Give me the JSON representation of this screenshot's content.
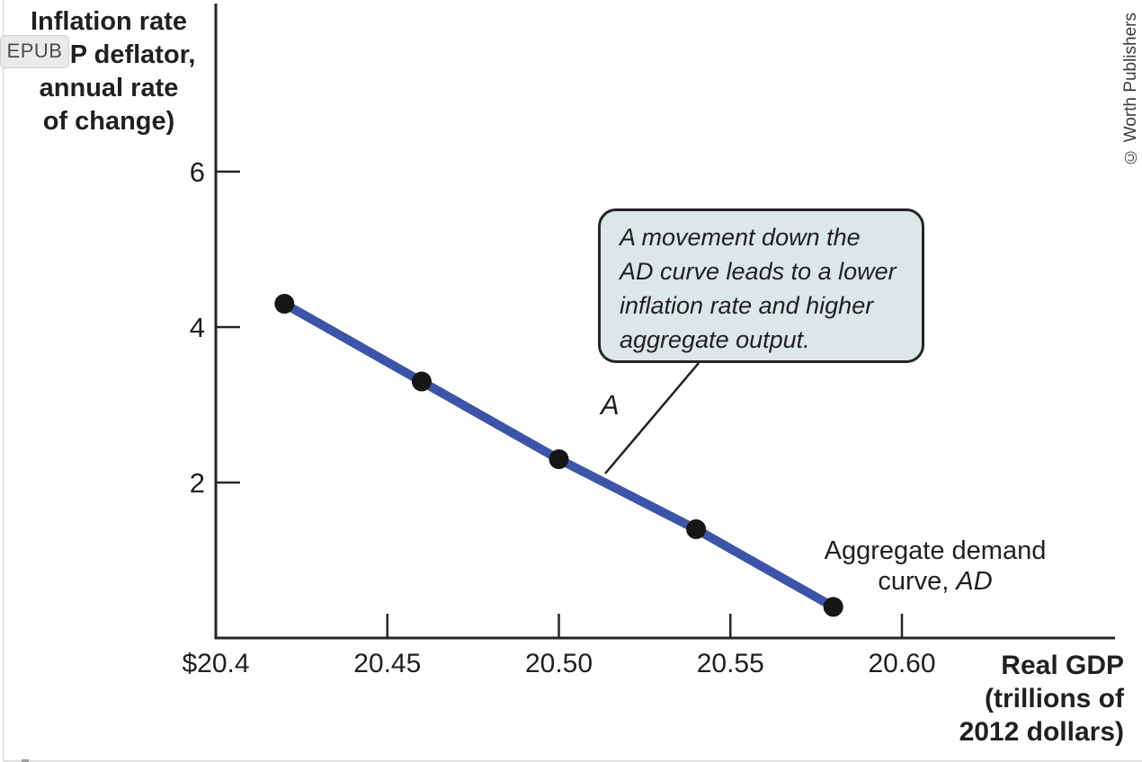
{
  "page": {
    "epub_badge_label": "EPUB",
    "credit": "© Worth Publishers"
  },
  "chart_data": {
    "type": "line",
    "grid": false,
    "legend": "none",
    "ylabel_lines": [
      "Inflation rate",
      "(GDP deflator,",
      "annual rate",
      "of change)"
    ],
    "xlabel_lines": [
      "Real GDP",
      "(trillions of",
      "2012 dollars)"
    ],
    "y_ticks": [
      {
        "value": 6,
        "label": "6"
      },
      {
        "value": 4,
        "label": "4"
      },
      {
        "value": 2,
        "label": "2"
      }
    ],
    "x_ticks": [
      {
        "value": 20.4,
        "label": "$20.4"
      },
      {
        "value": 20.45,
        "label": "20.45"
      },
      {
        "value": 20.5,
        "label": "20.50"
      },
      {
        "value": 20.55,
        "label": "20.55"
      },
      {
        "value": 20.6,
        "label": "20.60"
      }
    ],
    "x_range": [
      20.4,
      20.66
    ],
    "y_range": [
      0,
      8.2
    ],
    "series": [
      {
        "name": "Aggregate demand curve, AD",
        "color": "#3d55a8",
        "marker_color": "#161616",
        "points": [
          {
            "x": 20.42,
            "y": 4.3
          },
          {
            "x": 20.46,
            "y": 3.3
          },
          {
            "x": 20.5,
            "y": 2.3
          },
          {
            "x": 20.54,
            "y": 1.4
          },
          {
            "x": 20.58,
            "y": 0.4
          }
        ]
      }
    ],
    "point_label": "A",
    "annotation_lines": [
      "A movement down the",
      "AD curve leads to a lower",
      "inflation rate and higher",
      "aggregate output."
    ],
    "curve_label": {
      "line1": "Aggregate demand",
      "line2_prefix": "curve, ",
      "line2_italic": "AD"
    }
  }
}
